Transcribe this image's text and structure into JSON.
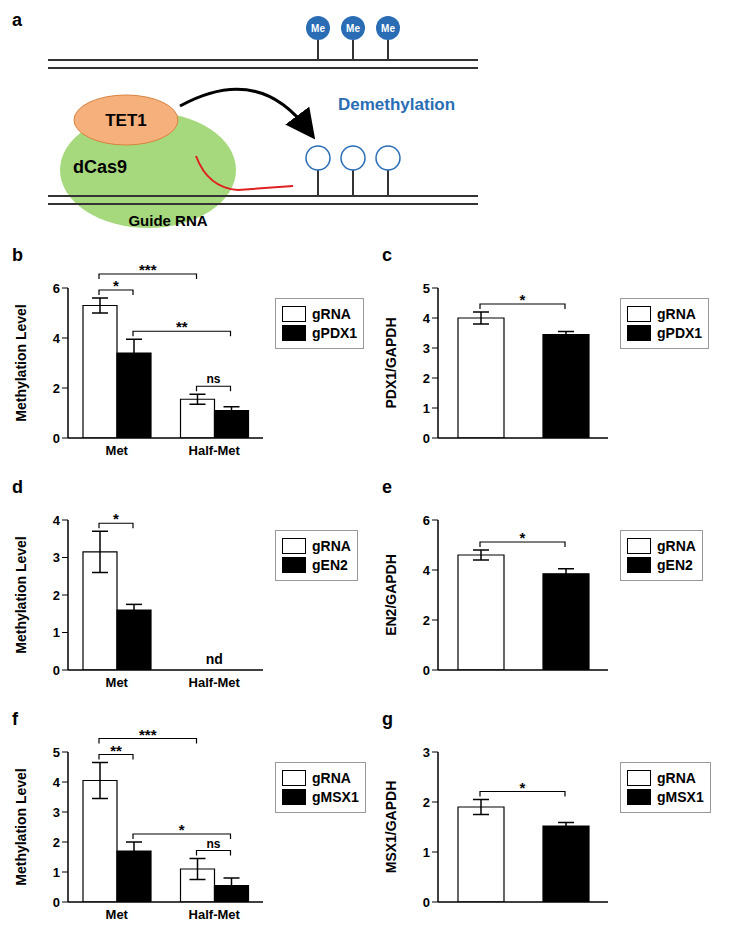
{
  "diagram": {
    "title": "a",
    "labels": {
      "enzyme": "TET1",
      "protein": "dCas9",
      "guide": "Guide RNA",
      "process": "Demethylation",
      "mark": "Me"
    }
  },
  "chart_data": [
    {
      "title": "b",
      "type": "bar",
      "categories": [
        "Met",
        "Half-Met"
      ],
      "series": [
        {
          "name": "gRNA",
          "color": "#ffffff",
          "values": [
            5.3,
            1.55
          ],
          "errors": [
            0.3,
            0.2
          ]
        },
        {
          "name": "gPDX1",
          "color": "#000000",
          "values": [
            3.4,
            1.1
          ],
          "errors": [
            0.55,
            0.15
          ]
        }
      ],
      "ylabel": "Methylation Level",
      "ylim": [
        0,
        6
      ],
      "yticks": [
        0,
        2,
        4,
        6
      ],
      "legend": "right",
      "annotations": [
        {
          "text": "*",
          "from": [
            "Met",
            "gRNA"
          ],
          "to": [
            "Met",
            "gPDX1"
          ]
        },
        {
          "text": "ns",
          "from": [
            "Half-Met",
            "gRNA"
          ],
          "to": [
            "Half-Met",
            "gPDX1"
          ]
        },
        {
          "text": "**",
          "from": [
            "Met",
            "gPDX1"
          ],
          "to": [
            "Half-Met",
            "gPDX1"
          ]
        },
        {
          "text": "***",
          "from": [
            "Met",
            "gRNA"
          ],
          "to": [
            "Half-Met",
            "gRNA"
          ]
        }
      ]
    },
    {
      "title": "c",
      "type": "bar",
      "categories": [
        "gRNA",
        "gPDX1"
      ],
      "values": [
        4.0,
        3.45
      ],
      "errors": [
        0.2,
        0.1
      ],
      "colors": [
        "#ffffff",
        "#000000"
      ],
      "ylabel": "PDX1/GAPDH",
      "ylim": [
        0,
        5
      ],
      "yticks": [
        0,
        1,
        2,
        3,
        4,
        5
      ],
      "legend": "right",
      "tick_labels": "y",
      "annotations": [
        {
          "text": "*",
          "from": [
            "gRNA"
          ],
          "to": [
            "gPDX1"
          ]
        }
      ]
    },
    {
      "title": "d",
      "type": "bar",
      "categories": [
        "Met",
        "Half-Met"
      ],
      "series": [
        {
          "name": "gRNA",
          "color": "#ffffff",
          "values": [
            3.15,
            null
          ],
          "errors": [
            0.55,
            null
          ]
        },
        {
          "name": "gEN2",
          "color": "#000000",
          "values": [
            1.6,
            null
          ],
          "errors": [
            0.15,
            null
          ]
        }
      ],
      "ylabel": "Methylation Level",
      "ylim": [
        0,
        4
      ],
      "yticks": [
        0,
        1,
        2,
        3,
        4
      ],
      "legend": "right",
      "annotations": [
        {
          "text": "*",
          "from": [
            "Met",
            "gRNA"
          ],
          "to": [
            "Met",
            "gEN2"
          ]
        },
        {
          "text": "nd",
          "at": "Half-Met"
        }
      ]
    },
    {
      "title": "e",
      "type": "bar",
      "categories": [
        "gRNA",
        "gEN2"
      ],
      "values": [
        4.6,
        3.85
      ],
      "errors": [
        0.2,
        0.2
      ],
      "colors": [
        "#ffffff",
        "#000000"
      ],
      "ylabel": "EN2/GAPDH",
      "ylim": [
        0,
        6
      ],
      "yticks": [
        0,
        2,
        4,
        6
      ],
      "legend": "right",
      "tick_labels": "y",
      "annotations": [
        {
          "text": "*",
          "from": [
            "gRNA"
          ],
          "to": [
            "gEN2"
          ]
        }
      ]
    },
    {
      "title": "f",
      "type": "bar",
      "categories": [
        "Met",
        "Half-Met"
      ],
      "series": [
        {
          "name": "gRNA",
          "color": "#ffffff",
          "values": [
            4.05,
            1.1
          ],
          "errors": [
            0.6,
            0.35
          ]
        },
        {
          "name": "gMSX1",
          "color": "#000000",
          "values": [
            1.7,
            0.55
          ],
          "errors": [
            0.3,
            0.25
          ]
        }
      ],
      "ylabel": "Methylation Level",
      "ylim": [
        0,
        5
      ],
      "yticks": [
        0,
        1,
        2,
        3,
        4,
        5
      ],
      "legend": "right",
      "annotations": [
        {
          "text": "**",
          "from": [
            "Met",
            "gRNA"
          ],
          "to": [
            "Met",
            "gMSX1"
          ]
        },
        {
          "text": "ns",
          "from": [
            "Half-Met",
            "gRNA"
          ],
          "to": [
            "Half-Met",
            "gMSX1"
          ]
        },
        {
          "text": "*",
          "from": [
            "Met",
            "gMSX1"
          ],
          "to": [
            "Half-Met",
            "gMSX1"
          ]
        },
        {
          "text": "***",
          "from": [
            "Met",
            "gRNA"
          ],
          "to": [
            "Half-Met",
            "gRNA"
          ]
        }
      ]
    },
    {
      "title": "g",
      "type": "bar",
      "categories": [
        "gRNA",
        "gMSX1"
      ],
      "values": [
        1.9,
        1.52
      ],
      "errors": [
        0.15,
        0.07
      ],
      "colors": [
        "#ffffff",
        "#000000"
      ],
      "ylabel": "MSX1/GAPDH",
      "ylim": [
        0,
        3
      ],
      "yticks": [
        0,
        1,
        2,
        3
      ],
      "legend": "right",
      "tick_labels": "y",
      "annotations": [
        {
          "text": "*",
          "from": [
            "gRNA"
          ],
          "to": [
            "gMSX1"
          ]
        }
      ]
    }
  ]
}
